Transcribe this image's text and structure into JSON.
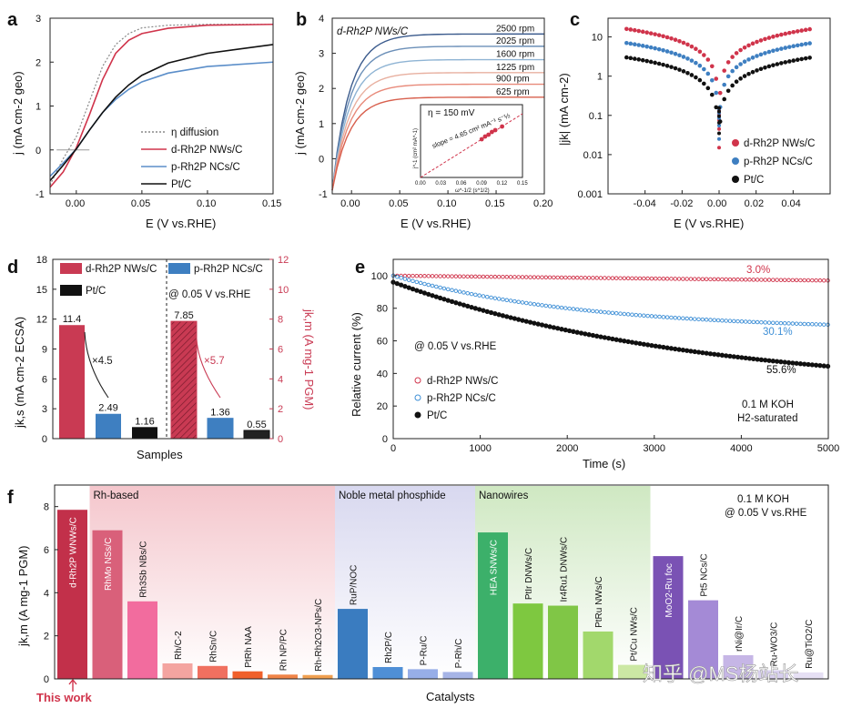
{
  "panel_labels": [
    "a",
    "b",
    "c",
    "d",
    "e",
    "f"
  ],
  "watermark": "知乎 @MS杨站长",
  "chart_data": [
    {
      "id": "a",
      "type": "line",
      "xlabel": "E (V vs.RHE)",
      "ylabel": "j (mA cm-2 geo)",
      "xlim": [
        -0.02,
        0.15
      ],
      "ylim": [
        -1,
        3
      ],
      "xticks": [
        "0.00",
        "0.05",
        "0.10",
        "0.15"
      ],
      "yticks": [
        "-1",
        "0",
        "1",
        "2",
        "3"
      ],
      "legend": [
        "η diffusion",
        "d-Rh2P NWs/C",
        "p-Rh2P NCs/C",
        "Pt/C"
      ],
      "series": [
        {
          "name": "η diffusion",
          "color": "#888888",
          "x": [
            -0.02,
            -0.01,
            0,
            0.01,
            0.02,
            0.03,
            0.04,
            0.05,
            0.07,
            0.1,
            0.15
          ],
          "y": [
            -0.8,
            -0.2,
            0.3,
            1.1,
            1.9,
            2.4,
            2.65,
            2.78,
            2.84,
            2.86,
            2.86
          ]
        },
        {
          "name": "d-Rh2P NWs/C",
          "color": "#d0344b",
          "x": [
            -0.02,
            -0.01,
            0,
            0.01,
            0.02,
            0.03,
            0.04,
            0.05,
            0.07,
            0.1,
            0.15
          ],
          "y": [
            -0.85,
            -0.5,
            0.05,
            0.8,
            1.6,
            2.2,
            2.5,
            2.65,
            2.77,
            2.84,
            2.86
          ]
        },
        {
          "name": "p-Rh2P NCs/C",
          "color": "#5b8ec9",
          "x": [
            -0.02,
            -0.01,
            0,
            0.01,
            0.02,
            0.03,
            0.04,
            0.05,
            0.07,
            0.1,
            0.15
          ],
          "y": [
            -0.6,
            -0.3,
            0.02,
            0.45,
            0.85,
            1.15,
            1.38,
            1.55,
            1.75,
            1.9,
            2.0
          ]
        },
        {
          "name": "Pt/C",
          "color": "#111111",
          "x": [
            -0.02,
            -0.01,
            0,
            0.01,
            0.02,
            0.03,
            0.04,
            0.05,
            0.07,
            0.1,
            0.15
          ],
          "y": [
            -0.7,
            -0.35,
            0.02,
            0.45,
            0.85,
            1.2,
            1.48,
            1.7,
            1.98,
            2.2,
            2.4
          ]
        }
      ]
    },
    {
      "id": "b",
      "type": "line",
      "title": "d-Rh2P NWs/C",
      "xlabel": "E (V vs.RHE)",
      "ylabel": "j (mA cm-2 geo)",
      "xlim": [
        -0.02,
        0.2
      ],
      "ylim": [
        -1,
        4
      ],
      "xticks": [
        "0.00",
        "0.05",
        "0.10",
        "0.15",
        "0.20"
      ],
      "yticks": [
        "-1",
        "0",
        "1",
        "2",
        "3",
        "4"
      ],
      "series": [
        {
          "name": "2500 rpm",
          "color": "#3a5a8c",
          "limit": 3.55
        },
        {
          "name": "2025 rpm",
          "color": "#6b8fb8",
          "limit": 3.2
        },
        {
          "name": "1600 rpm",
          "color": "#8fb4d4",
          "limit": 2.82
        },
        {
          "name": "1225 rpm",
          "color": "#e8b0a0",
          "limit": 2.45
        },
        {
          "name": "900 rpm",
          "color": "#e88a7a",
          "limit": 2.12
        },
        {
          "name": "625 rpm",
          "color": "#d8604e",
          "limit": 1.75
        }
      ],
      "inset": {
        "title": "η = 150 mV",
        "annotation": "slope = 4.65 cm² mA⁻¹ s⁻½",
        "xlabel": "ω^-1/2 (s^1/2)",
        "ylabel": "j^-1 (cm² mA^-1)",
        "xlim": [
          0,
          0.15
        ],
        "ylim": [
          0,
          0.8
        ],
        "xticks": [
          "0.00",
          "0.03",
          "0.06",
          "0.09",
          "0.12",
          "0.15"
        ],
        "points": [
          [
            0.09,
            0.42
          ],
          [
            0.095,
            0.45
          ],
          [
            0.1,
            0.47
          ],
          [
            0.105,
            0.5
          ],
          [
            0.11,
            0.52
          ],
          [
            0.12,
            0.56
          ]
        ]
      }
    },
    {
      "id": "c",
      "type": "scatter",
      "xlabel": "E (V vs.RHE)",
      "ylabel": "|jk| (mA cm-2)",
      "xlim": [
        -0.06,
        0.06
      ],
      "ylim_log": [
        0.001,
        30
      ],
      "xticks": [
        "-0.04",
        "-0.02",
        "0.00",
        "0.02",
        "0.04"
      ],
      "yticks": [
        "0.001",
        "0.01",
        "0.1",
        "1",
        "10"
      ],
      "legend": [
        "d-Rh2P NWs/C",
        "p-Rh2P NCs/C",
        "Pt/C"
      ],
      "series": [
        {
          "name": "d-Rh2P NWs/C",
          "color": "#d0344b",
          "edge": 16,
          "mid": 0.1
        },
        {
          "name": "p-Rh2P NCs/C",
          "color": "#3e7fc1",
          "edge": 7,
          "mid": 0.06
        },
        {
          "name": "Pt/C",
          "color": "#111111",
          "edge": 3,
          "mid": 0.02
        }
      ]
    },
    {
      "id": "d",
      "type": "bar",
      "xlabel": "Samples",
      "ylabel_left": "jk,s (mA cm-2 ECSA)",
      "ylabel_right": "jk,m (A mg-1 PGM)",
      "ylim_left": [
        0,
        18
      ],
      "ylim_right": [
        0,
        12
      ],
      "yticks_left": [
        "0",
        "3",
        "6",
        "9",
        "12",
        "15",
        "18"
      ],
      "yticks_right": [
        "0",
        "2",
        "4",
        "6",
        "8",
        "10",
        "12"
      ],
      "condition": "@ 0.05 V vs.RHE",
      "legend": [
        "d-Rh2P NWs/C",
        "p-Rh2P NCs/C",
        "Pt/C"
      ],
      "groups": [
        {
          "axis": "left",
          "values": [
            11.4,
            2.49,
            1.16
          ],
          "labels": [
            "11.4",
            "2.49",
            "1.16"
          ],
          "ratio": "×4.5"
        },
        {
          "axis": "right",
          "values": [
            7.85,
            1.36,
            0.55
          ],
          "labels": [
            "7.85",
            "1.36",
            "0.55"
          ],
          "ratio": "×5.7"
        }
      ],
      "colors": [
        "#c93a53",
        "#3e7fc1",
        "#111111"
      ]
    },
    {
      "id": "e",
      "type": "scatter",
      "xlabel": "Time (s)",
      "ylabel": "Relative current (%)",
      "xlim": [
        0,
        5000
      ],
      "ylim": [
        0,
        100
      ],
      "xticks": [
        "0",
        "1000",
        "2000",
        "3000",
        "4000",
        "5000"
      ],
      "yticks": [
        "0",
        "20",
        "40",
        "60",
        "80",
        "100"
      ],
      "condition": "@ 0.05 V vs.RHE",
      "electrolyte": [
        "0.1 M KOH",
        "H2-saturated"
      ],
      "legend": [
        "d-Rh2P NWs/C",
        "p-Rh2P NCs/C",
        "Pt/C"
      ],
      "series": [
        {
          "name": "d-Rh2P NWs/C",
          "color": "#d0344b",
          "start": 100,
          "end": 97,
          "decay_label": "3.0%"
        },
        {
          "name": "p-Rh2P NCs/C",
          "color": "#3e8fd6",
          "start": 100,
          "end": 69.9,
          "decay_label": "30.1%"
        },
        {
          "name": "Pt/C",
          "color": "#111111",
          "start": 96,
          "end": 44.4,
          "decay_label": "55.6%"
        }
      ]
    },
    {
      "id": "f",
      "type": "bar",
      "xlabel": "Catalysts",
      "ylabel": "jk,m (A mg-1 PGM)",
      "ylim": [
        0,
        9
      ],
      "yticks": [
        "0",
        "2",
        "4",
        "6",
        "8"
      ],
      "conditions": [
        "0.1 M KOH",
        "@ 0.05 V vs.RHE"
      ],
      "highlight": "This work",
      "regions": [
        {
          "label": "Rh-based",
          "from": 1,
          "to": 8,
          "color": "#f4c6cc"
        },
        {
          "label": "Noble metal phosphide",
          "from": 8,
          "to": 12,
          "color": "#d8d8ef"
        },
        {
          "label": "Nanowires",
          "from": 12,
          "to": 17,
          "color": "#cfe8c2"
        }
      ],
      "categories": [
        "d-Rh2P WNWs/C",
        "RhMo NSs/C",
        "Rh3Sb NBs/C",
        "Rh/C-2",
        "RhSn/C",
        "PtRh NAA",
        "Rh NP/PC",
        "Rh-Rh2O3-NPs/C",
        "RuP/NOC",
        "Rh2P/C",
        "P-Ru/C",
        "P-Rh/C",
        "HEA SNWs/C",
        "PtIr DNWs/C",
        "Ir4Ru1 DNWs/C",
        "PtRu NWs/C",
        "Pt/Cu NWs/C",
        "MoO2-Ru foc",
        "Pt5 NCs/C",
        "rNi@Ir/C",
        "Ru-WO3/C",
        "Ru@TiO2/C"
      ],
      "values": [
        7.85,
        6.9,
        3.6,
        0.72,
        0.6,
        0.35,
        0.2,
        0.18,
        3.25,
        0.55,
        0.45,
        0.32,
        6.8,
        3.5,
        3.4,
        2.2,
        0.65,
        5.7,
        3.65,
        1.1,
        0.4,
        0.3
      ],
      "colors": [
        "#c2304a",
        "#d9607a",
        "#f26c9e",
        "#f4a4a0",
        "#f07060",
        "#f0602a",
        "#f08448",
        "#f0a050",
        "#3a7cc0",
        "#4f8fd6",
        "#97aee8",
        "#a6b4e6",
        "#3cb06a",
        "#7ec840",
        "#80c646",
        "#a2d86c",
        "#cce8a4",
        "#7a52b4",
        "#a48ad6",
        "#c6b6e6",
        "#d8d0ee",
        "#e6e0f4"
      ]
    }
  ]
}
